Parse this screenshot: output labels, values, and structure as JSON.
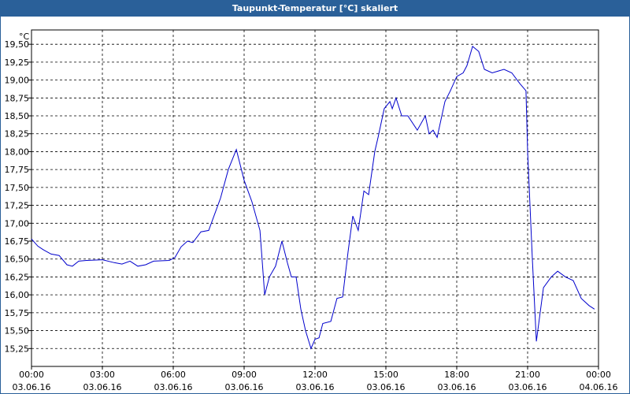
{
  "chart_data": {
    "type": "line",
    "title": "Taupunkt-Temperatur [°C] skaliert",
    "y_unit": "°C",
    "grid": true,
    "xlim": [
      0,
      24
    ],
    "xticks": [
      {
        "value": 0,
        "label": "00:00"
      },
      {
        "value": 3,
        "label": "03:00"
      },
      {
        "value": 6,
        "label": "06:00"
      },
      {
        "value": 9,
        "label": "09:00"
      },
      {
        "value": 12,
        "label": "12:00"
      },
      {
        "value": 15,
        "label": "15:00"
      },
      {
        "value": 18,
        "label": "18:00"
      },
      {
        "value": 21,
        "label": "21:00"
      },
      {
        "value": 24,
        "label": "00:00"
      }
    ],
    "xtick_dates": [
      "03.06.16",
      "03.06.16",
      "03.06.16",
      "03.06.16",
      "03.06.16",
      "03.06.16",
      "03.06.16",
      "03.06.16",
      "04.06.16"
    ],
    "ylim": [
      15.0,
      19.7
    ],
    "yticks": [
      {
        "value": 15.25,
        "label": "15,25"
      },
      {
        "value": 15.5,
        "label": "15,50"
      },
      {
        "value": 15.75,
        "label": "15,75"
      },
      {
        "value": 16.0,
        "label": "16,00"
      },
      {
        "value": 16.25,
        "label": "16,25"
      },
      {
        "value": 16.5,
        "label": "16,50"
      },
      {
        "value": 16.75,
        "label": "16,75"
      },
      {
        "value": 17.0,
        "label": "17,00"
      },
      {
        "value": 17.25,
        "label": "17,25"
      },
      {
        "value": 17.5,
        "label": "17,50"
      },
      {
        "value": 17.75,
        "label": "17,75"
      },
      {
        "value": 18.0,
        "label": "18,00"
      },
      {
        "value": 18.25,
        "label": "18,25"
      },
      {
        "value": 18.5,
        "label": "18,50"
      },
      {
        "value": 18.75,
        "label": "18,75"
      },
      {
        "value": 19.0,
        "label": "19,00"
      },
      {
        "value": 19.25,
        "label": "19,25"
      },
      {
        "value": 19.5,
        "label": "19,50"
      }
    ],
    "series": [
      {
        "color": "#0000cc",
        "x": [
          0,
          0.27,
          0.5,
          0.83,
          1.17,
          1.5,
          1.73,
          2,
          2.33,
          3,
          3.5,
          3.83,
          4.17,
          4.5,
          4.83,
          5.17,
          5.83,
          6.07,
          6.33,
          6.6,
          6.83,
          7.17,
          7.5,
          8,
          8.33,
          8.67,
          9,
          9.33,
          9.67,
          9.87,
          10.07,
          10.33,
          10.6,
          10.83,
          11,
          11.2,
          11.4,
          11.6,
          11.83,
          12,
          12.17,
          12.33,
          12.67,
          12.93,
          13.17,
          13.4,
          13.6,
          13.83,
          14.07,
          14.27,
          14.53,
          14.67,
          14.93,
          15.17,
          15.27,
          15.43,
          15.67,
          15.93,
          16.33,
          16.67,
          16.83,
          17,
          17.17,
          17.5,
          17.73,
          18,
          18.27,
          18.43,
          18.67,
          18.93,
          19.17,
          19.5,
          20,
          20.33,
          20.67,
          20.93,
          21,
          21.2,
          21.37,
          21.67,
          22,
          22.27,
          22.6,
          22.93,
          23.27,
          23.6,
          23.83
        ],
        "values": [
          16.78,
          16.68,
          16.63,
          16.57,
          16.55,
          16.42,
          16.4,
          16.47,
          16.48,
          16.49,
          16.45,
          16.43,
          16.47,
          16.4,
          16.42,
          16.47,
          16.48,
          16.52,
          16.67,
          16.75,
          16.73,
          16.88,
          16.9,
          17.35,
          17.75,
          18.03,
          17.6,
          17.3,
          16.9,
          16.0,
          16.25,
          16.4,
          16.75,
          16.45,
          16.25,
          16.25,
          15.8,
          15.5,
          15.25,
          15.38,
          15.4,
          15.6,
          15.63,
          15.95,
          15.97,
          16.6,
          17.1,
          16.9,
          17.45,
          17.4,
          18.0,
          18.2,
          18.6,
          18.7,
          18.6,
          18.75,
          18.5,
          18.5,
          18.3,
          18.5,
          18.25,
          18.3,
          18.2,
          18.7,
          18.85,
          19.05,
          19.1,
          19.2,
          19.47,
          19.4,
          19.15,
          19.1,
          19.15,
          19.1,
          18.95,
          18.85,
          18.0,
          16.5,
          15.35,
          16.1,
          16.25,
          16.33,
          16.25,
          16.2,
          15.95,
          15.85,
          15.8
        ]
      }
    ]
  }
}
